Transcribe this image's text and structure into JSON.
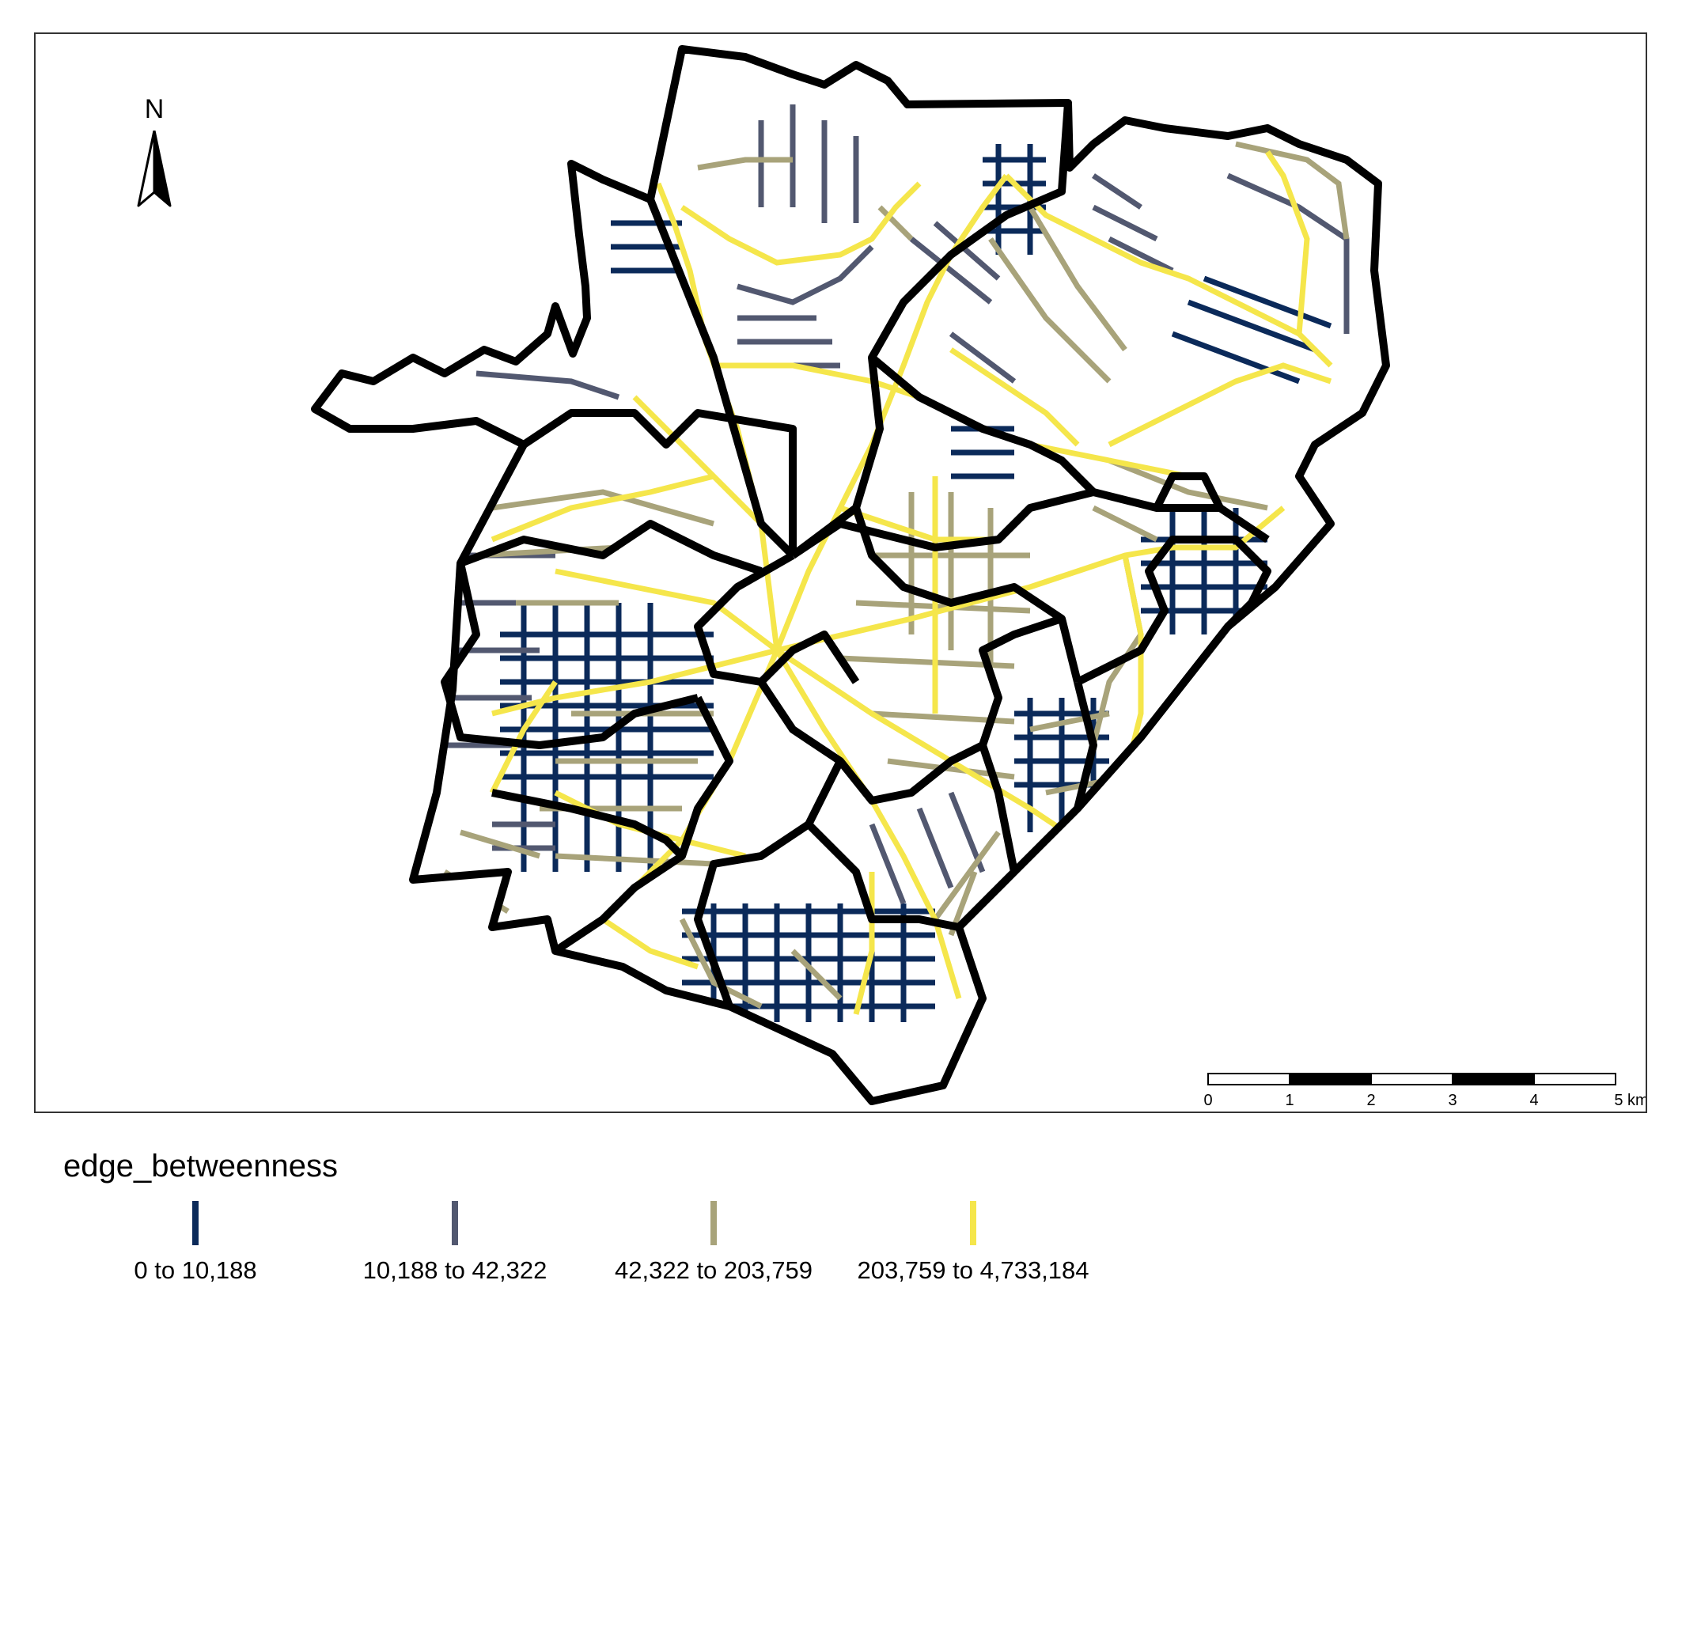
{
  "map": {
    "north_label": "N",
    "scale": {
      "ticks": [
        "0",
        "1",
        "2",
        "3",
        "4",
        "5 km"
      ]
    }
  },
  "legend": {
    "title": "edge_betweenness",
    "items": [
      {
        "label": "0 to 10,188",
        "color": "#0b2a5a"
      },
      {
        "label": "10,188 to 42,322",
        "color": "#525870"
      },
      {
        "label": "42,322 to 203,759",
        "color": "#a8a37a"
      },
      {
        "label": "203,759 to 4,733,184",
        "color": "#f5e64b"
      }
    ]
  }
}
